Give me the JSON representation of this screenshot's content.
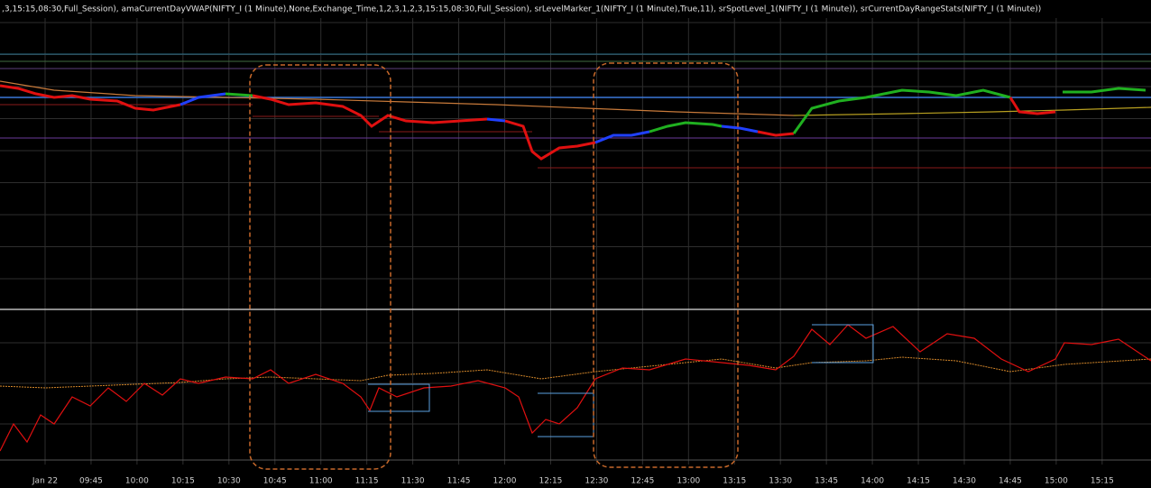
{
  "header": {
    "text": ",3,15:15,08:30,Full_Session), amaCurrentDayVWAP(NIFTY_I (1 Minute),None,Exchange_Time,1,2,3,1,2,3,15:15,08:30,Full_Session), srLevelMarker_1(NIFTY_I (1 Minute),True,11), srSpotLevel_1(NIFTY_I (1 Minute)), srCurrentDayRangeStats(NIFTY_I (1 Minute))"
  },
  "x_axis": {
    "labels": [
      "Jan 22",
      "09:45",
      "10:00",
      "10:15",
      "10:30",
      "10:45",
      "11:00",
      "11:15",
      "11:30",
      "11:45",
      "12:00",
      "12:15",
      "12:30",
      "12:45",
      "13:00",
      "13:15",
      "13:30",
      "13:45",
      "14:00",
      "14:15",
      "14:30",
      "14:45",
      "15:00",
      "15:15"
    ]
  }
}
